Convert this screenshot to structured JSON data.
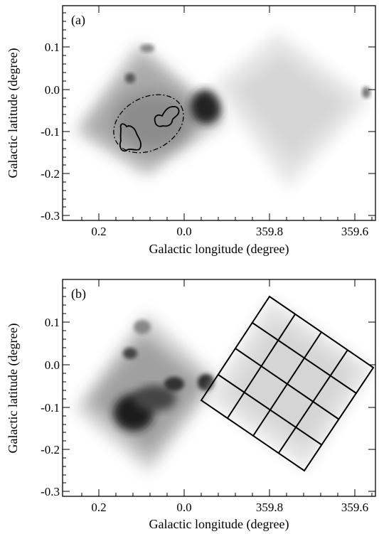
{
  "figure": {
    "panels": [
      {
        "label": "(a)",
        "xlabel": "Galactic longitude (degree)",
        "ylabel": "Galactic latitude (degree)",
        "xticks": [
          "0.2",
          "0.0",
          "359.8",
          "359.6"
        ],
        "yticks": [
          "0.1",
          "0.0",
          "-0.1",
          "-0.2",
          "-0.3"
        ]
      },
      {
        "label": "(b)",
        "xlabel": "Galactic longitude (degree)",
        "ylabel": "Galactic latitude (degree)",
        "xticks": [
          "0.2",
          "0.0",
          "359.8",
          "359.6"
        ],
        "yticks": [
          "0.1",
          "0.0",
          "-0.1",
          "-0.2",
          "-0.3"
        ]
      }
    ]
  }
}
